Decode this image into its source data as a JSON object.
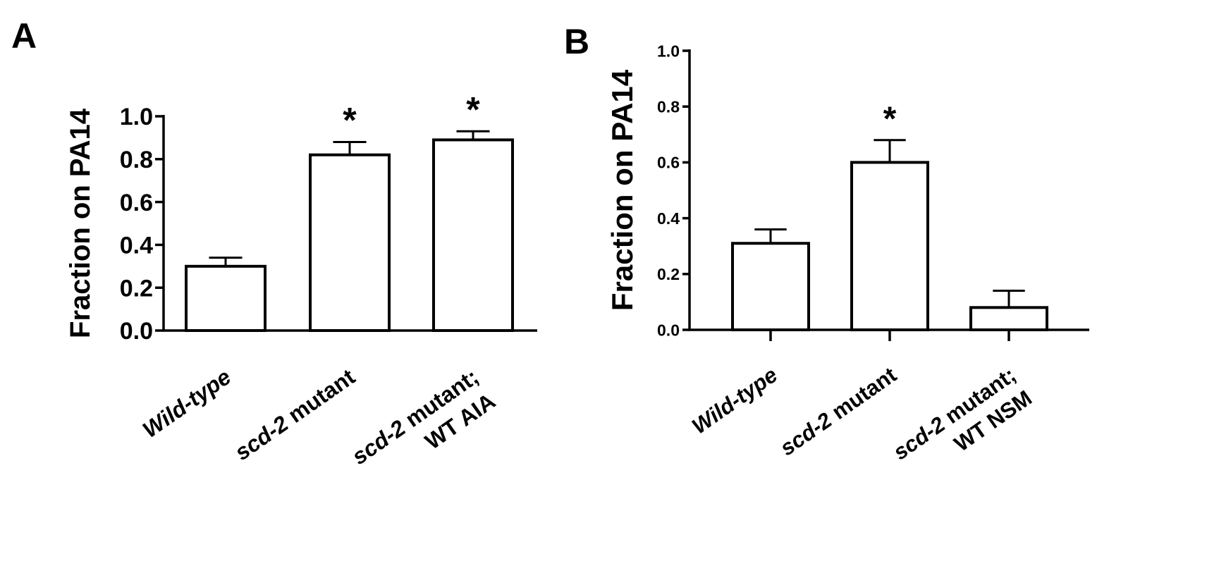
{
  "chart_data": [
    {
      "panel_label": "A",
      "type": "bar",
      "ylabel": "Fraction on PA14",
      "ylim": [
        0,
        1.0
      ],
      "yticks": [
        "0.0",
        "0.2",
        "0.4",
        "0.6",
        "0.8",
        "1.0"
      ],
      "categories": [
        {
          "lines": [
            [
              {
                "t": "Wild-type",
                "i": true
              }
            ]
          ]
        },
        {
          "lines": [
            [
              {
                "t": "scd-2",
                "i": true
              },
              {
                "t": " mutant",
                "i": false
              }
            ]
          ]
        },
        {
          "lines": [
            [
              {
                "t": "scd-2",
                "i": true
              },
              {
                "t": " mutant;",
                "i": false
              }
            ],
            [
              {
                "t": "WT AIA",
                "i": false
              }
            ]
          ]
        }
      ],
      "values": [
        0.3,
        0.82,
        0.89
      ],
      "errors": [
        0.04,
        0.06,
        0.04
      ],
      "annotations": [
        "",
        "*",
        "*"
      ]
    },
    {
      "panel_label": "B",
      "type": "bar",
      "ylabel": "Fraction on PA14",
      "ylim": [
        0,
        1.0
      ],
      "yticks": [
        "0.0",
        "0.2",
        "0.4",
        "0.6",
        "0.8",
        "1.0"
      ],
      "categories": [
        {
          "lines": [
            [
              {
                "t": "Wild-type",
                "i": true
              }
            ]
          ]
        },
        {
          "lines": [
            [
              {
                "t": "scd-2",
                "i": true
              },
              {
                "t": " mutant",
                "i": false
              }
            ]
          ]
        },
        {
          "lines": [
            [
              {
                "t": "scd-2",
                "i": true
              },
              {
                "t": " mutant;",
                "i": false
              }
            ],
            [
              {
                "t": "WT NSM",
                "i": false
              }
            ]
          ]
        }
      ],
      "values": [
        0.31,
        0.6,
        0.08
      ],
      "errors": [
        0.05,
        0.08,
        0.06
      ],
      "annotations": [
        "",
        "*",
        ""
      ]
    }
  ]
}
